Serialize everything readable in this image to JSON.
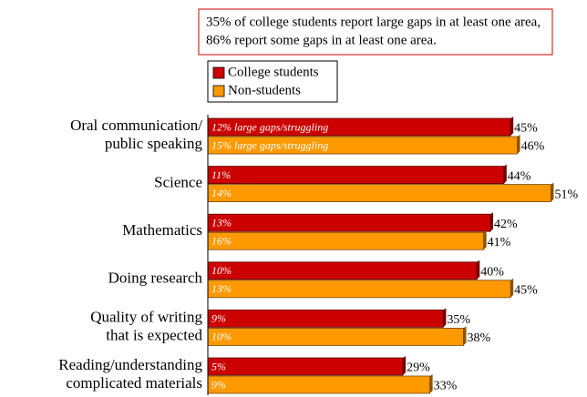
{
  "chart_data": {
    "type": "bar",
    "orientation": "horizontal",
    "annotation": [
      "35% of college students report large gaps in at least one area,",
      "86% report some gaps in at least one area."
    ],
    "categories": [
      [
        "Oral communication/",
        "public speaking"
      ],
      [
        "Science"
      ],
      [
        "Mathematics"
      ],
      [
        "Doing research"
      ],
      [
        "Quality of writing",
        "that is expected"
      ],
      [
        "Reading/understanding",
        "complicated materials"
      ]
    ],
    "xlim": [
      0,
      55
    ],
    "series": [
      {
        "name": "College students",
        "color": "#cc0000",
        "values": [
          45,
          44,
          42,
          40,
          35,
          29
        ],
        "value_labels": [
          "45%",
          "44%",
          "42%",
          "40%",
          "35%",
          "29%"
        ],
        "large_gaps": [
          12,
          11,
          13,
          10,
          9,
          5
        ],
        "large_gaps_labels": [
          "12% large gaps/struggling",
          "11%",
          "13%",
          "10%",
          "9%",
          "5%"
        ]
      },
      {
        "name": "Non-students",
        "color": "#ff9900",
        "values": [
          46,
          51,
          41,
          45,
          38,
          33
        ],
        "value_labels": [
          "46%",
          "51%",
          "41%",
          "45%",
          "38%",
          "33%"
        ],
        "large_gaps": [
          15,
          14,
          16,
          13,
          10,
          9
        ],
        "large_gaps_labels": [
          "15% large gaps/struggling",
          "14%",
          "16%",
          "13%",
          "10%",
          "9%"
        ]
      }
    ]
  }
}
